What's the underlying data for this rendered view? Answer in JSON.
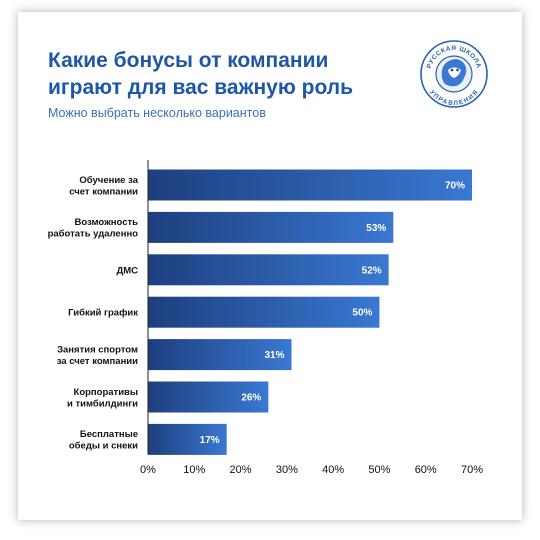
{
  "header": {
    "title": "Какие бонусы от компании играют для вас важную роль",
    "subtitle": "Можно выбрать несколько вариантов"
  },
  "logo": {
    "text_top": "РУССКАЯ ШКОЛА",
    "text_bottom": "УПРАВЛЕНИЯ",
    "color": "#2a62b3"
  },
  "colors": {
    "title": "#1f57a8",
    "bar_dark": "#1d3f7e",
    "bar_light": "#3a78d2",
    "axis": "#222222"
  },
  "chart_data": {
    "type": "bar",
    "orientation": "horizontal",
    "title": "Какие бонусы от компании играют для вас важную роль",
    "subtitle": "Можно выбрать несколько вариантов",
    "xlabel": "",
    "ylabel": "",
    "xlim": [
      0,
      70
    ],
    "grid": false,
    "categories": [
      [
        "Обучение за",
        "счет компании"
      ],
      [
        "Возможность",
        "работать удаленно"
      ],
      [
        "ДМС"
      ],
      [
        "Гибкий график"
      ],
      [
        "Занятия спортом",
        "за счет компании"
      ],
      [
        "Корпоративы",
        "и тимбилдинги"
      ],
      [
        "Бесплатные",
        "обеды и снеки"
      ]
    ],
    "values": [
      70,
      53,
      52,
      50,
      31,
      26,
      17
    ],
    "value_labels": [
      "70%",
      "53%",
      "52%",
      "50%",
      "31%",
      "26%",
      "17%"
    ],
    "ticks": [
      0,
      10,
      20,
      30,
      40,
      50,
      60,
      70
    ],
    "tick_labels": [
      "0%",
      "10%",
      "20%",
      "30%",
      "40%",
      "50%",
      "60%",
      "70%"
    ]
  }
}
